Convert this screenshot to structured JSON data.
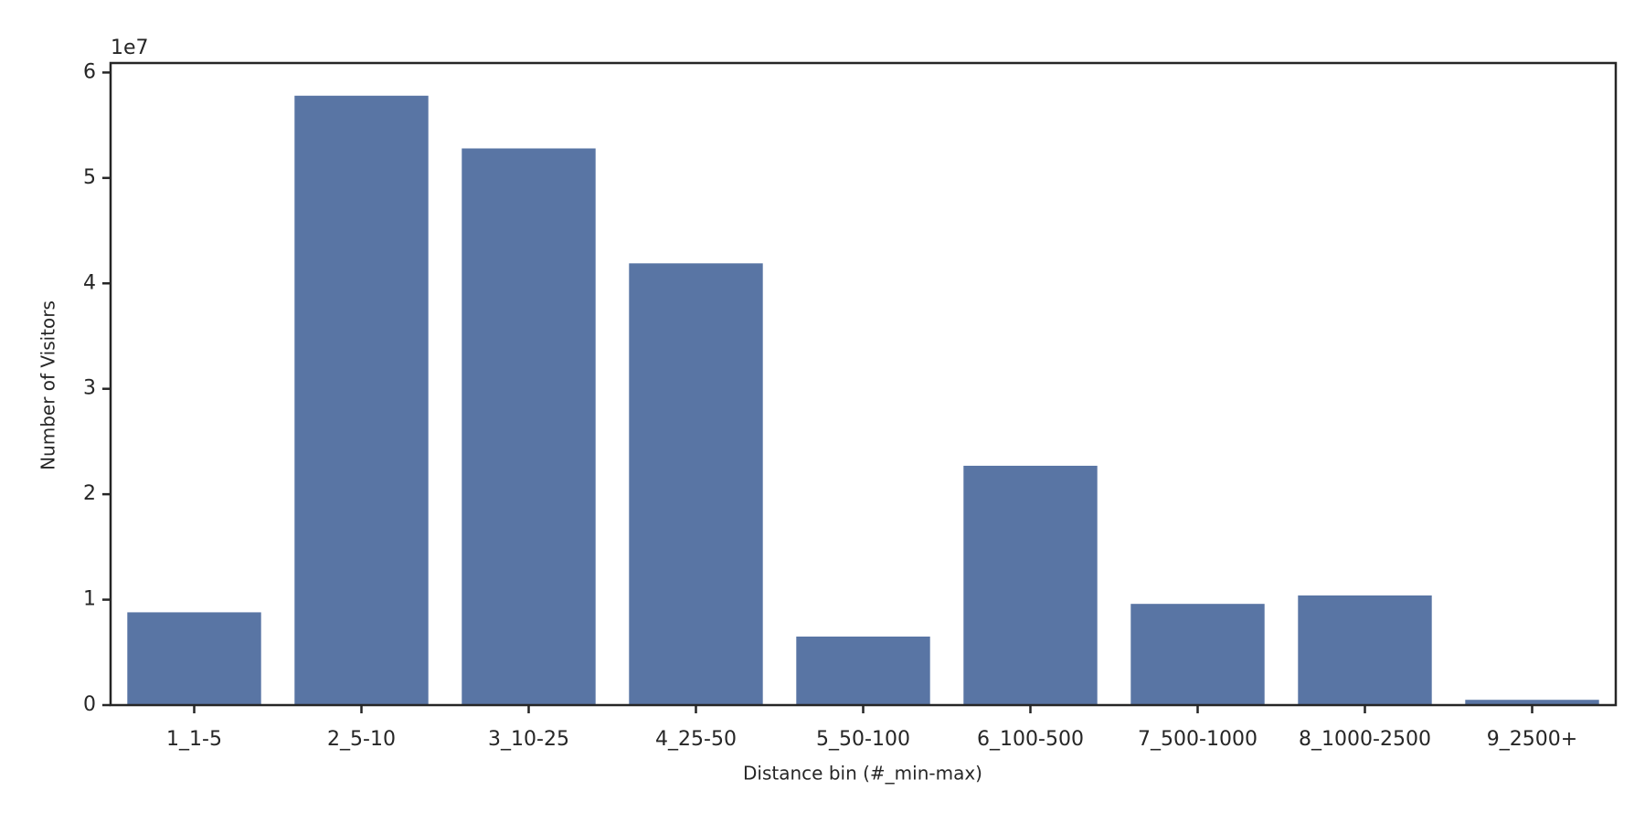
{
  "chart_data": {
    "type": "bar",
    "x_label": "Distance bin (#_min-max)",
    "y_label": "Number of Visitors",
    "y_scale_label": "1e7",
    "categories": [
      "1_1-5",
      "2_5-10",
      "3_10-25",
      "4_25-50",
      "5_50-100",
      "6_100-500",
      "7_500-1000",
      "8_1000-2500",
      "9_2500+"
    ],
    "values": [
      0.88,
      5.78,
      5.28,
      4.19,
      0.65,
      2.27,
      0.96,
      1.04,
      0.05
    ],
    "color": "#5975a4",
    "ylim": [
      0,
      6.09
    ],
    "yticks": [
      0,
      1,
      2,
      3,
      4,
      5,
      6
    ],
    "grid": false
  }
}
